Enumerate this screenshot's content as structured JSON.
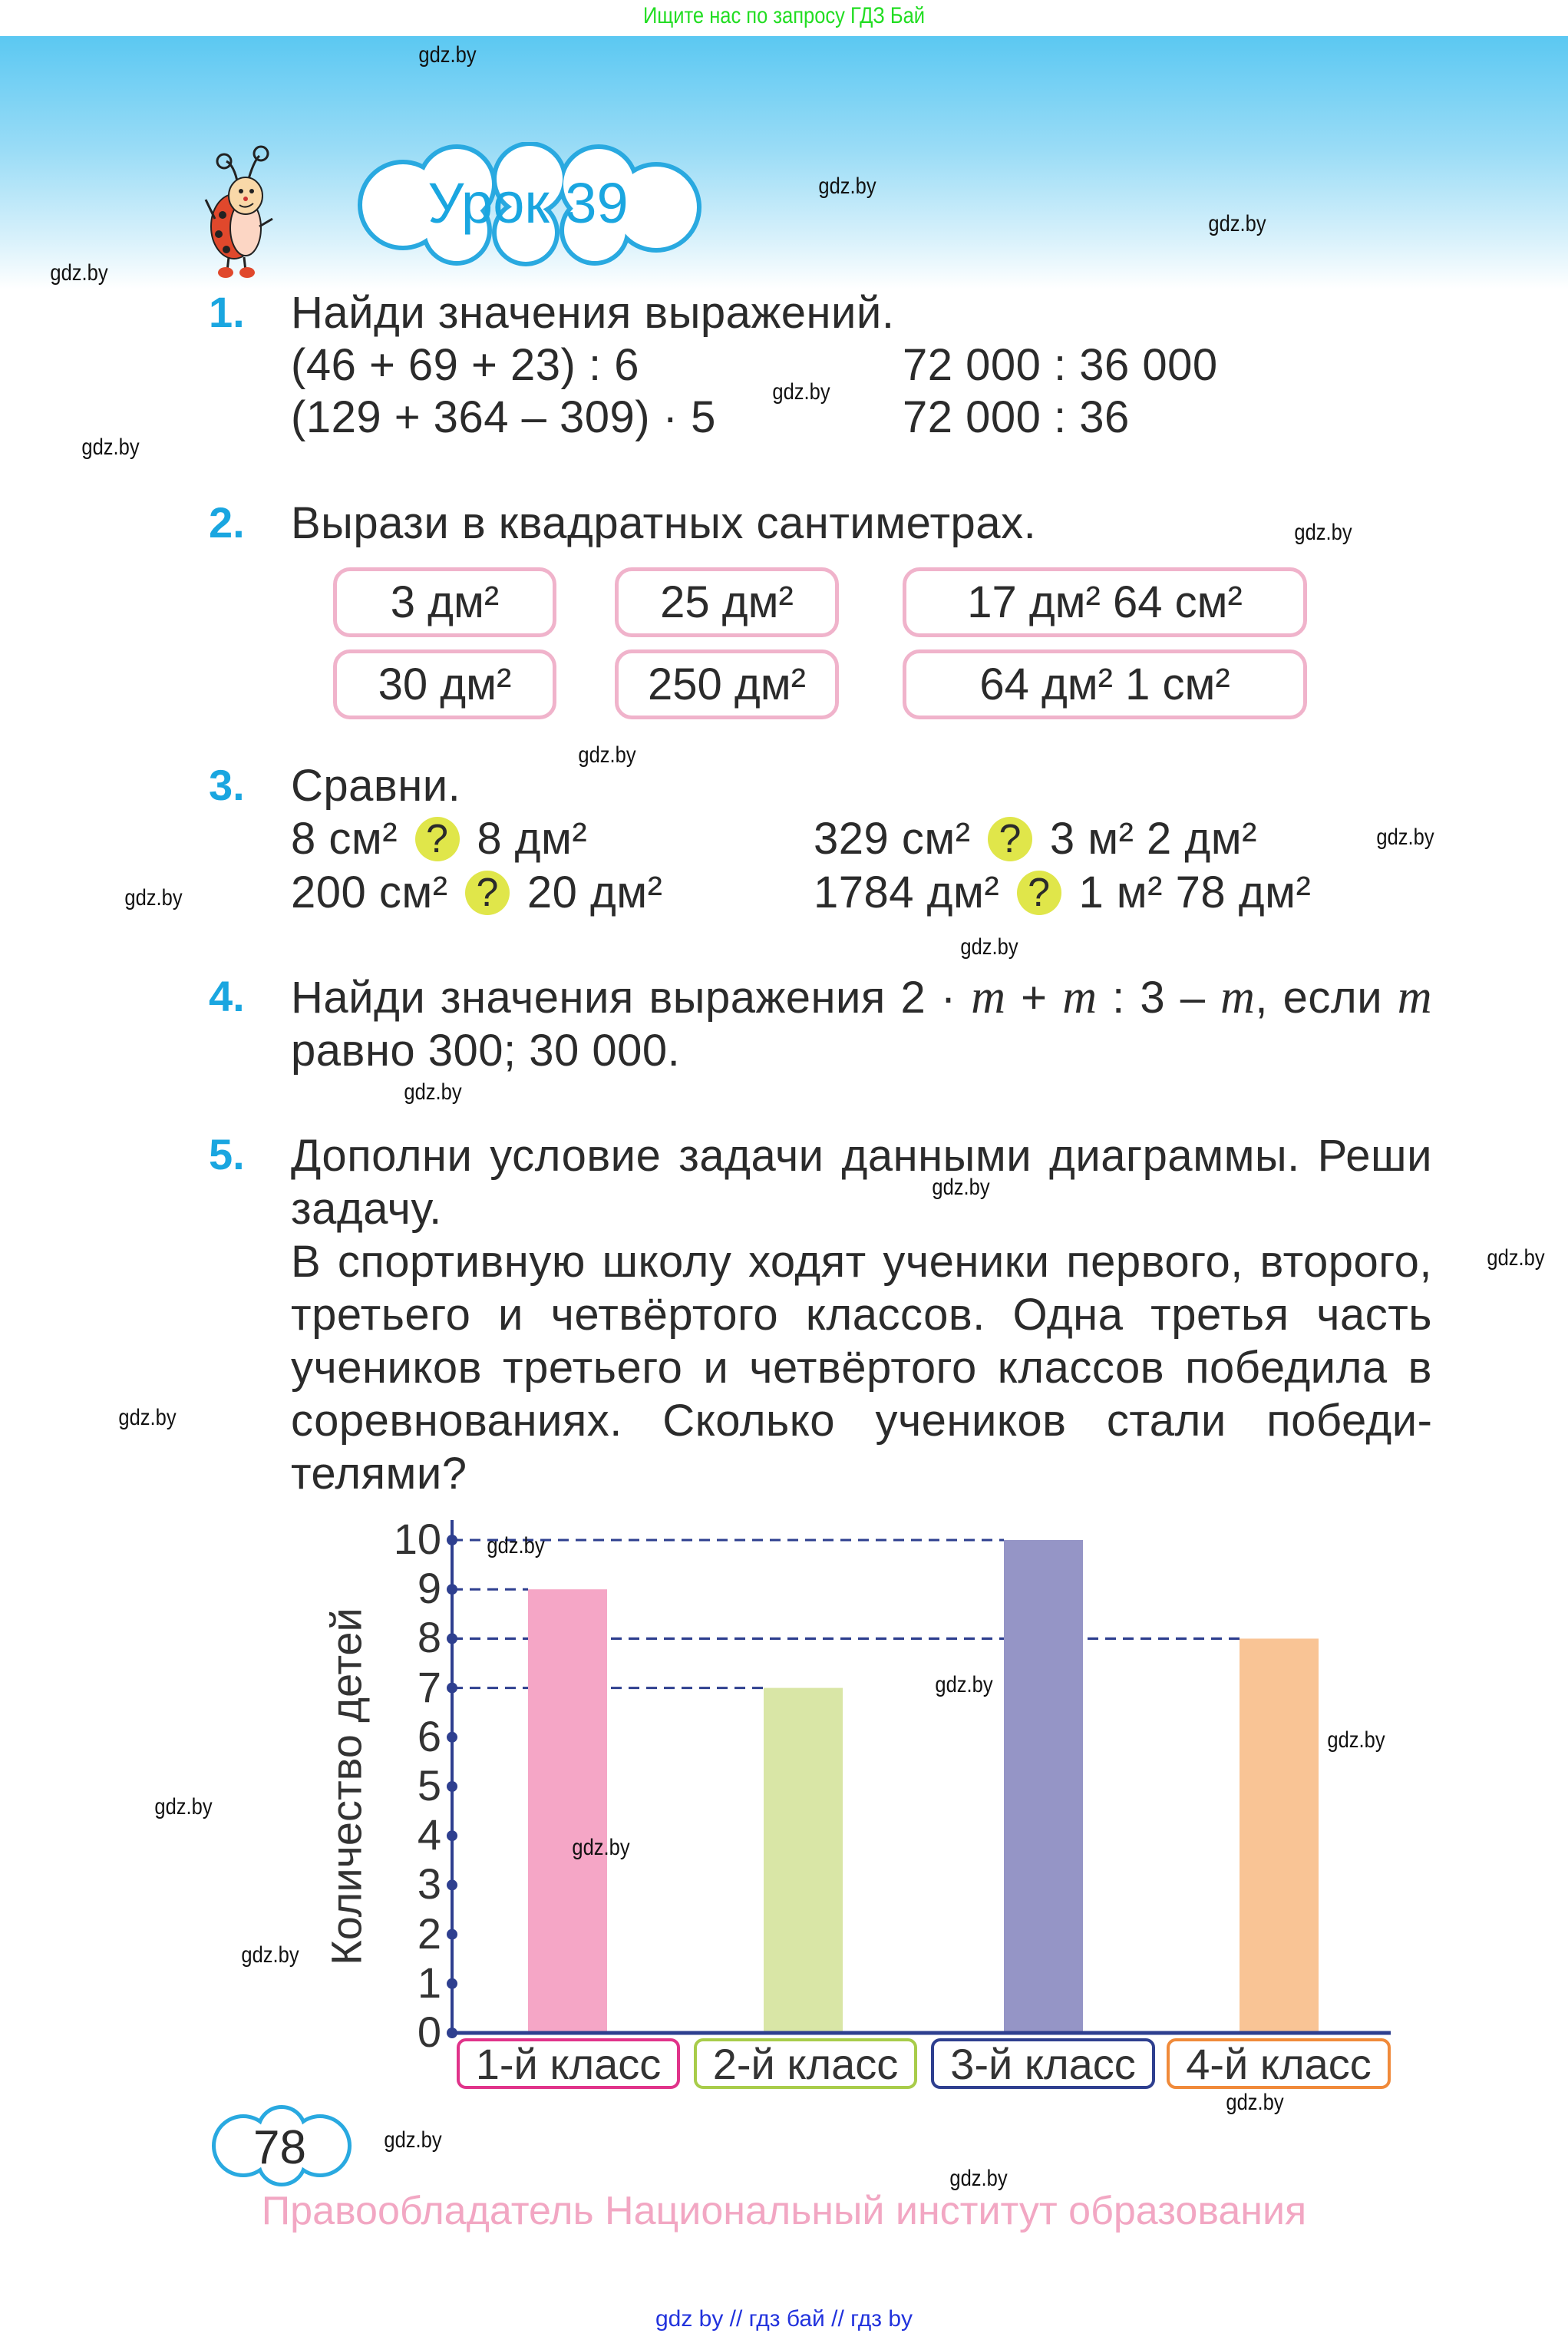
{
  "top_banner": "Ищите нас по запросу ГДЗ Бай",
  "lesson_title": "Урок 39",
  "watermark": "gdz.by",
  "task1": {
    "number": "1.",
    "title": "Найди значения выражений.",
    "expr_left": [
      "(46 + 69 + 23) : 6",
      "(129 + 364 – 309) · 5"
    ],
    "expr_right": [
      "72 000 : 36 000",
      "72 000 : 36"
    ]
  },
  "task2": {
    "number": "2.",
    "title": "Вырази в квадратных сантиметрах.",
    "boxes": [
      "3 дм²",
      "25 дм²",
      "17 дм² 64 см²",
      "30 дм²",
      "250 дм²",
      "64 дм² 1 см²"
    ],
    "border_color": "#f0b3cb"
  },
  "task3": {
    "number": "3.",
    "title": "Сравни.",
    "marker": "?",
    "marker_color": "#e0e64a",
    "rows": [
      {
        "a": "8 см²",
        "b": "8 дм²"
      },
      {
        "a": "200 см²",
        "b": "20 дм²"
      },
      {
        "a": "329 см²",
        "b": "3 м² 2 дм²"
      },
      {
        "a": "1784 дм²",
        "b": "1 м² 78 дм²"
      }
    ]
  },
  "task4": {
    "number": "4.",
    "p1": "Найди значения выражения 2 · ",
    "var": "m",
    "p2": " + ",
    "p3": " : 3 – ",
    "p4": ", если ",
    "p5": " равно 300; 30 000."
  },
  "task5": {
    "number": "5.",
    "title": "Дополни условие задачи данными диаграммы. Реши задачу.",
    "text": "В спортивную школу ходят ученики первого, второго, третьего и четвёртого классов. Одна третья часть учеников третьего и четвёртого классов победила в соревнованиях. Сколько учеников стали побе­ди­телями?"
  },
  "chart_data": {
    "type": "bar",
    "categories": [
      "1-й класс",
      "2-й класс",
      "3-й класс",
      "4-й класс"
    ],
    "values": [
      9,
      7,
      10,
      8
    ],
    "colors": [
      "#f5a6c6",
      "#d9e6a6",
      "#9595c6",
      "#f9c495"
    ],
    "label_border_colors": [
      "#e0338a",
      "#a8cc4a",
      "#2e3f8f",
      "#f08a3a"
    ],
    "ylabel": "Количество детей",
    "xlabel": "",
    "ylim": [
      0,
      10
    ],
    "yticks": [
      "0",
      "1",
      "2",
      "3",
      "4",
      "5",
      "6",
      "7",
      "8",
      "9",
      "10"
    ],
    "axis_color": "#2e3f8f",
    "guide_lines": "dashed"
  },
  "page_number": "78",
  "footer": "Правообладатель Национальный институт образования",
  "bottom_links": "gdz by  //  гдз бай  //  гдз by"
}
